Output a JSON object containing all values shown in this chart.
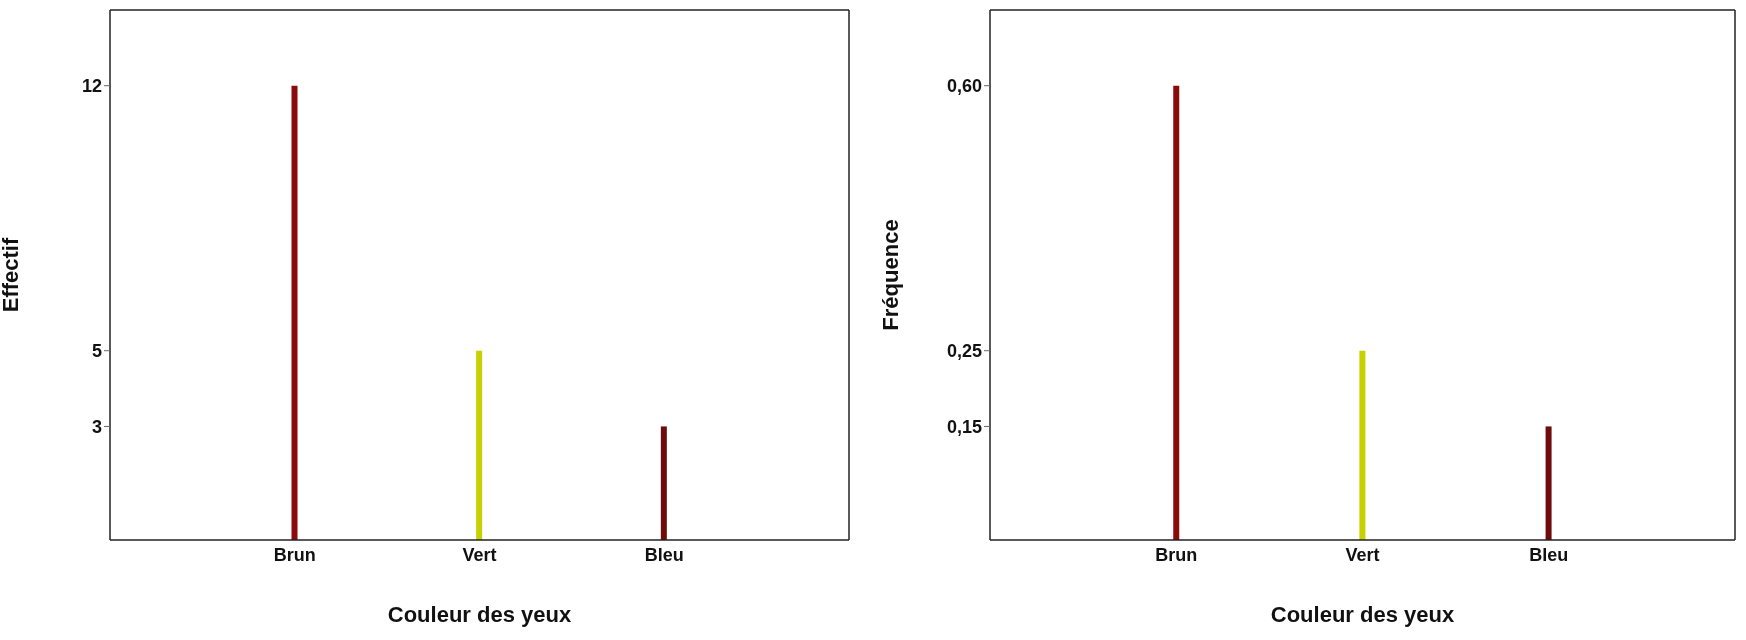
{
  "chart_data": [
    {
      "type": "bar",
      "xlabel": "Couleur des yeux",
      "ylabel": "Effectif",
      "categories": [
        "Brun",
        "Vert",
        "Bleu"
      ],
      "values": [
        12,
        5,
        3
      ],
      "colors": [
        "#8b0a0a",
        "#c8d000",
        "#6e0c0c"
      ],
      "ylim": [
        0,
        14
      ],
      "yticks": [
        3,
        5,
        12
      ],
      "grid": false,
      "legend": false
    },
    {
      "type": "bar",
      "xlabel": "Couleur des yeux",
      "ylabel": "Fréquence",
      "categories": [
        "Brun",
        "Vert",
        "Bleu"
      ],
      "values": [
        0.6,
        0.25,
        0.15
      ],
      "colors": [
        "#8b0a0a",
        "#c8d000",
        "#6e0c0c"
      ],
      "ylim": [
        0,
        0.7
      ],
      "yticks": [
        {
          "value": 0.15,
          "label": "0,15"
        },
        {
          "value": 0.25,
          "label": "0,25"
        },
        {
          "value": 0.6,
          "label": "0,60"
        }
      ],
      "grid": false,
      "legend": false
    }
  ]
}
